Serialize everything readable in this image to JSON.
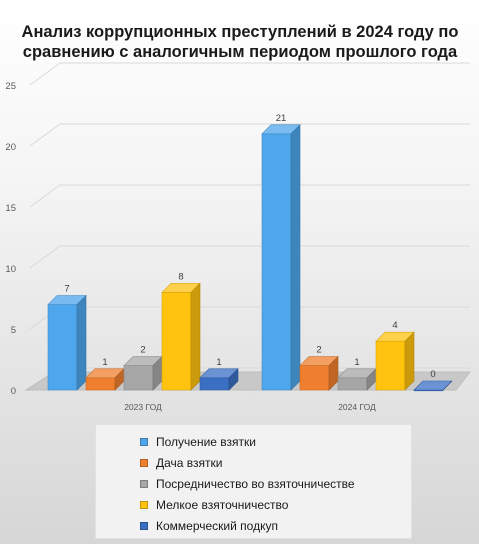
{
  "chart_data": {
    "type": "bar",
    "title": "Анализ коррупционных преступлений в 2024 году по сравнению с аналогичным периодом прошлого года",
    "categories": [
      "2023 ГОД",
      "2024 ГОД"
    ],
    "series": [
      {
        "name": "Получение взятки",
        "values": [
          7,
          21
        ],
        "color": "#4ea6ec"
      },
      {
        "name": "Дача взятки",
        "values": [
          1,
          2
        ],
        "color": "#ef7f2e"
      },
      {
        "name": "Посредничество во взяточничестве",
        "values": [
          2,
          1
        ],
        "color": "#a6a6a6"
      },
      {
        "name": "Мелкое взяточничество",
        "values": [
          8,
          4
        ],
        "color": "#ffc20e"
      },
      {
        "name": "Коммерческий подкуп",
        "values": [
          1,
          0
        ],
        "color": "#3a6fc4"
      }
    ],
    "ylim": [
      0,
      25
    ],
    "yticks": [
      0,
      5,
      10,
      15,
      20,
      25
    ],
    "grid": true,
    "legend_position": "bottom",
    "three_d": true
  }
}
